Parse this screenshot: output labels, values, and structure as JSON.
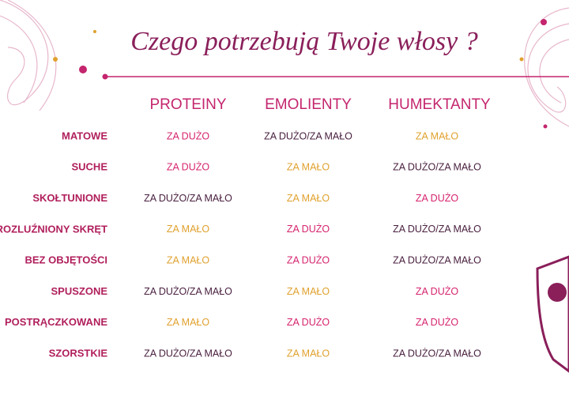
{
  "title": "Czego potrzebują Twoje włosy ?",
  "table": {
    "columns": [
      "PROTEINY",
      "EMOLIENTY",
      "HUMEKTANTY"
    ],
    "rows": [
      {
        "label": "MATOWE",
        "cells": [
          {
            "text": "ZA DUŻO",
            "color": "#d6246e"
          },
          {
            "text": "ZA DUŻO/ZA MAŁO",
            "color": "#4a2140"
          },
          {
            "text": "ZA MAŁO",
            "color": "#e0a12e"
          }
        ]
      },
      {
        "label": "SUCHE",
        "cells": [
          {
            "text": "ZA DUŻO",
            "color": "#d6246e"
          },
          {
            "text": "ZA MAŁO",
            "color": "#e0a12e"
          },
          {
            "text": "ZA DUŻO/ZA MAŁO",
            "color": "#4a2140"
          }
        ]
      },
      {
        "label": "SKOŁTUNIONE",
        "cells": [
          {
            "text": "ZA DUŻO/ZA MAŁO",
            "color": "#4a2140"
          },
          {
            "text": "ZA MAŁO",
            "color": "#e0a12e"
          },
          {
            "text": "ZA DUŻO",
            "color": "#d6246e"
          }
        ]
      },
      {
        "label": "ROZLUŹNIONY SKRĘT",
        "cells": [
          {
            "text": "ZA MAŁO",
            "color": "#e0a12e"
          },
          {
            "text": "ZA DUŻO",
            "color": "#d6246e"
          },
          {
            "text": "ZA DUŻO/ZA MAŁO",
            "color": "#4a2140"
          }
        ]
      },
      {
        "label": "BEZ OBJĘTOŚCI",
        "cells": [
          {
            "text": "ZA MAŁO",
            "color": "#e0a12e"
          },
          {
            "text": "ZA DUŻO",
            "color": "#d6246e"
          },
          {
            "text": "ZA DUŻO/ZA MAŁO",
            "color": "#4a2140"
          }
        ]
      },
      {
        "label": "SPUSZONE",
        "cells": [
          {
            "text": "ZA DUŻO/ZA MAŁO",
            "color": "#4a2140"
          },
          {
            "text": "ZA MAŁO",
            "color": "#e0a12e"
          },
          {
            "text": "ZA DUŻO",
            "color": "#d6246e"
          }
        ]
      },
      {
        "label": "POSTRĄCZKOWANE",
        "cells": [
          {
            "text": "ZA MAŁO",
            "color": "#e0a12e"
          },
          {
            "text": "ZA DUŻO",
            "color": "#d6246e"
          },
          {
            "text": "ZA DUŻO",
            "color": "#d6246e"
          }
        ]
      },
      {
        "label": "SZORSTKIE",
        "cells": [
          {
            "text": "ZA DUŻO/ZA MAŁO",
            "color": "#4a2140"
          },
          {
            "text": "ZA MAŁO",
            "color": "#e0a12e"
          },
          {
            "text": "ZA DUŻO/ZA MAŁO",
            "color": "#4a2140"
          }
        ]
      }
    ]
  }
}
